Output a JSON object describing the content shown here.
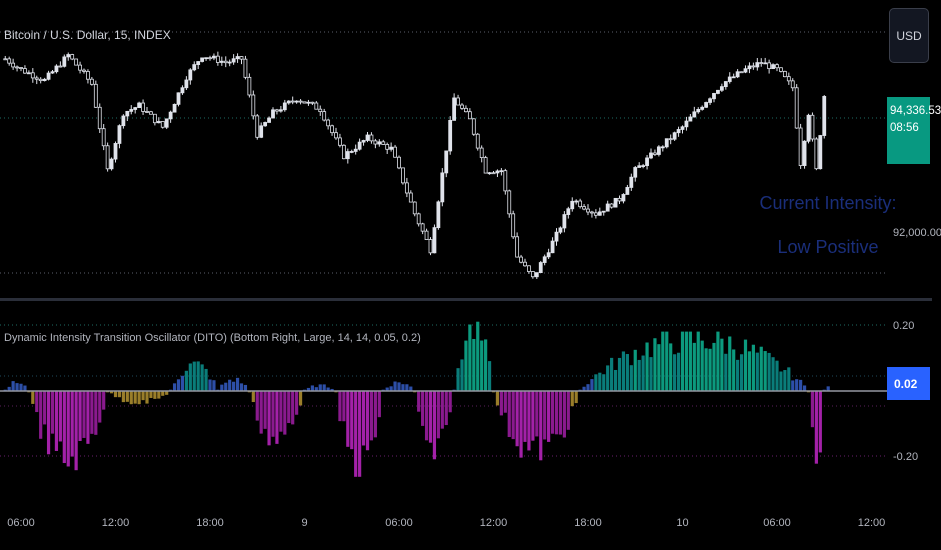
{
  "header": {
    "symbol_title": "Bitcoin / U.S. Dollar, 15, INDEX",
    "currency_button": "USD"
  },
  "indicator": {
    "title": "Dynamic Intensity Transition Oscillator (DITO) (Bottom Right, Large, 14, 14, 0.05, 0.2)",
    "intensity_label_line1": "Current Intensity:",
    "intensity_label_line2": "Low Positive",
    "current_value": "0.02"
  },
  "price_axis": {
    "current_price": "94,336.53",
    "countdown": "08:56",
    "tick_92000": "92,000.00"
  },
  "osc_axis": {
    "tick_pos": "0.20",
    "tick_neg": "-0.20"
  },
  "time_axis": [
    "06:00",
    "12:00",
    "18:00",
    "9",
    "06:00",
    "12:00",
    "18:00",
    "10",
    "06:00",
    "12:00"
  ],
  "colors": {
    "background": "#000000",
    "candle_up": "#e0e3eb",
    "hist_strong_pos": "#0c9a7e",
    "hist_mid_pos": "#0a7d7a",
    "hist_weak_pos": "#2d4fa8",
    "hist_weak_neg": "#9a7e2a",
    "hist_neg": "#8a1a8e",
    "hist_strong_neg": "#a321a8",
    "intensity_label": "#1a2e7a",
    "price_badge": "#089981",
    "osc_badge": "#2962ff"
  },
  "chart_data": [
    {
      "type": "candlestick",
      "title": "Bitcoin / U.S. Dollar, 15, INDEX",
      "x_range": [
        "8 06:00",
        "10 12:00"
      ],
      "ylim": [
        91500,
        95500
      ],
      "reference_levels": [
        95300,
        94336.53,
        92000
      ],
      "close_path": [
        [
          "8 05:00",
          94850
        ],
        [
          "8 06:00",
          94700
        ],
        [
          "8 07:30",
          94550
        ],
        [
          "8 09:00",
          94900
        ],
        [
          "8 10:30",
          94500
        ],
        [
          "8 11:30",
          93300
        ],
        [
          "8 12:30",
          94100
        ],
        [
          "8 13:30",
          94200
        ],
        [
          "8 15:00",
          93900
        ],
        [
          "8 16:30",
          94600
        ],
        [
          "8 17:30",
          94900
        ],
        [
          "8 19:00",
          94800
        ],
        [
          "8 20:00",
          94850
        ],
        [
          "8 21:00",
          93800
        ],
        [
          "8 22:00",
          94100
        ],
        [
          "8 23:30",
          94300
        ],
        [
          "9 01:00",
          94150
        ],
        [
          "9 02:30",
          93500
        ],
        [
          "9 04:00",
          93750
        ],
        [
          "9 05:30",
          93600
        ],
        [
          "9 07:00",
          92700
        ],
        [
          "9 08:00",
          92200
        ],
        [
          "9 09:30",
          94300
        ],
        [
          "9 10:30",
          94000
        ],
        [
          "9 11:30",
          93300
        ],
        [
          "9 12:30",
          93300
        ],
        [
          "9 13:30",
          92100
        ],
        [
          "9 14:30",
          91800
        ],
        [
          "9 16:00",
          92400
        ],
        [
          "9 17:00",
          92900
        ],
        [
          "9 18:30",
          92700
        ],
        [
          "9 20:00",
          92900
        ],
        [
          "9 21:00",
          93300
        ],
        [
          "9 22:30",
          93600
        ],
        [
          "10 00:00",
          93900
        ],
        [
          "10 01:00",
          94150
        ],
        [
          "10 02:30",
          94500
        ],
        [
          "10 04:00",
          94700
        ],
        [
          "10 05:00",
          94800
        ],
        [
          "10 06:00",
          94700
        ],
        [
          "10 07:00",
          94450
        ],
        [
          "10 07:30",
          93400
        ],
        [
          "10 08:00",
          94100
        ],
        [
          "10 08:30",
          93300
        ],
        [
          "10 09:00",
          94336.53
        ]
      ]
    },
    {
      "type": "bar",
      "title": "Dynamic Intensity Transition Oscillator (DITO) (Bottom Right, Large, 14, 14, 0.05, 0.2)",
      "ylim": [
        -0.27,
        0.25
      ],
      "reference_levels": [
        0.2,
        0.05,
        0,
        -0.05,
        -0.2
      ],
      "current_value": 0.02,
      "annotation": "Current Intensity: Low Positive",
      "segments": [
        {
          "from": "8 05:00",
          "to": "8 06:30",
          "peak": 0.03
        },
        {
          "from": "8 06:30",
          "to": "8 11:30",
          "peak": -0.24
        },
        {
          "from": "8 11:30",
          "to": "8 15:30",
          "peak": -0.04
        },
        {
          "from": "8 15:30",
          "to": "8 18:30",
          "peak": 0.09
        },
        {
          "from": "8 18:30",
          "to": "8 20:30",
          "peak": 0.04
        },
        {
          "from": "8 20:30",
          "to": "9 00:00",
          "peak": -0.17
        },
        {
          "from": "9 00:00",
          "to": "9 02:00",
          "peak": 0.02
        },
        {
          "from": "9 02:00",
          "to": "9 05:00",
          "peak": -0.26
        },
        {
          "from": "9 05:00",
          "to": "9 07:00",
          "peak": 0.03
        },
        {
          "from": "9 07:00",
          "to": "9 09:30",
          "peak": -0.22
        },
        {
          "from": "9 09:30",
          "to": "9 12:00",
          "peak": 0.21
        },
        {
          "from": "9 12:00",
          "to": "9 17:30",
          "peak": -0.21
        },
        {
          "from": "9 17:30",
          "to": "10 08:00",
          "peak": 0.18
        },
        {
          "from": "10 08:00",
          "to": "10 09:00",
          "peak": -0.24
        },
        {
          "from": "10 09:00",
          "to": "10 09:30",
          "peak": 0.02
        }
      ]
    }
  ]
}
